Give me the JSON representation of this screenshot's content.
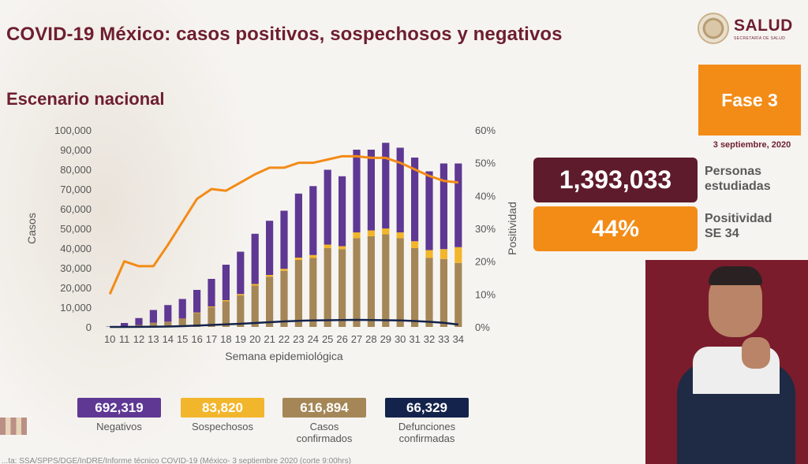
{
  "header": {
    "title": "COVID-19 México: casos positivos, sospechosos y negativos",
    "subtitle": "Escenario nacional"
  },
  "logo": {
    "name": "SALUD",
    "sub": "SECRETARÍA DE SALUD",
    "icon": "national-emblem"
  },
  "phase": {
    "label": "Fase 3",
    "date": "3 septiembre, 2020",
    "color": "#f38b17"
  },
  "stats": {
    "people": {
      "value": "1,393,033",
      "caption_line1": "Personas",
      "caption_line2": "estudiadas"
    },
    "positivity": {
      "value": "44%",
      "caption_line1": "Positividad",
      "caption_line2": "SE 34"
    }
  },
  "legend": {
    "negatives": {
      "value": "692,319",
      "label": "Negativos",
      "color": "#5e3893"
    },
    "suspects": {
      "value": "83,820",
      "label": "Sospechosos",
      "color": "#f2b62c"
    },
    "confirmed": {
      "value": "616,894",
      "label_line1": "Casos",
      "label_line2": "confirmados",
      "color": "#a48657"
    },
    "deaths": {
      "value": "66,329",
      "label_line1": "Defunciones",
      "label_line2": "confirmadas",
      "color": "#14234b"
    }
  },
  "source_text": "...ta: SSA/SPPS/DGE/InDRE/Informe técnico COVID-19 (México- 3 septiembre 2020 (corte 9:00hrs)",
  "chart_data": {
    "type": "bar",
    "xlabel": "Semana epidemiológica",
    "ylabel": "Casos",
    "y2label": "Positividad",
    "ylim": [
      0,
      100000
    ],
    "y2lim": [
      0,
      60
    ],
    "yticks": [
      "0",
      "10,000",
      "20,000",
      "30,000",
      "40,000",
      "50,000",
      "60,000",
      "70,000",
      "80,000",
      "90,000",
      "100,000"
    ],
    "y2ticks": [
      "0%",
      "10%",
      "20%",
      "30%",
      "40%",
      "50%",
      "60%"
    ],
    "categories": [
      "10",
      "11",
      "12",
      "13",
      "14",
      "15",
      "16",
      "17",
      "18",
      "19",
      "20",
      "21",
      "22",
      "23",
      "24",
      "25",
      "26",
      "27",
      "28",
      "29",
      "30",
      "31",
      "32",
      "33",
      "34"
    ],
    "stacked": true,
    "series": [
      {
        "name": "Casos confirmados",
        "color": "#a48657",
        "values": [
          50,
          300,
          1000,
          2000,
          2500,
          4000,
          7000,
          10000,
          13000,
          16000,
          21000,
          25500,
          28500,
          34000,
          35000,
          40000,
          39500,
          45000,
          46000,
          47000,
          45000,
          40000,
          35000,
          34500,
          32500
        ]
      },
      {
        "name": "Sospechosos",
        "color": "#f2b62c",
        "values": [
          0,
          0,
          0,
          100,
          100,
          200,
          300,
          400,
          600,
          700,
          800,
          900,
          1000,
          1200,
          1500,
          1800,
          1500,
          3000,
          3000,
          3000,
          3000,
          3500,
          4000,
          5000,
          8000
        ]
      },
      {
        "name": "Negativos",
        "color": "#5e3893",
        "values": [
          200,
          1700,
          3500,
          6500,
          8500,
          10000,
          11500,
          14000,
          18000,
          21500,
          25500,
          27500,
          29500,
          32500,
          35000,
          38000,
          35500,
          42000,
          41000,
          43500,
          43000,
          42500,
          40000,
          43500,
          42500
        ]
      }
    ],
    "lines": [
      {
        "name": "Defunciones confirmadas",
        "color": "#14234b",
        "axis": "left",
        "values": [
          10,
          20,
          50,
          100,
          200,
          400,
          700,
          1000,
          1300,
          1600,
          2000,
          2400,
          2800,
          3100,
          3300,
          3400,
          3500,
          3600,
          3500,
          3400,
          3300,
          3000,
          2600,
          2100,
          1200
        ]
      },
      {
        "name": "Positividad",
        "color": "#f38b17",
        "axis": "right",
        "values": [
          10,
          20,
          18.5,
          18.5,
          25,
          32,
          39,
          42,
          41.5,
          44,
          46.5,
          48.5,
          48.5,
          50,
          50,
          51,
          52,
          52,
          51.5,
          51.5,
          50,
          48,
          46,
          44.5,
          44
        ]
      }
    ]
  }
}
